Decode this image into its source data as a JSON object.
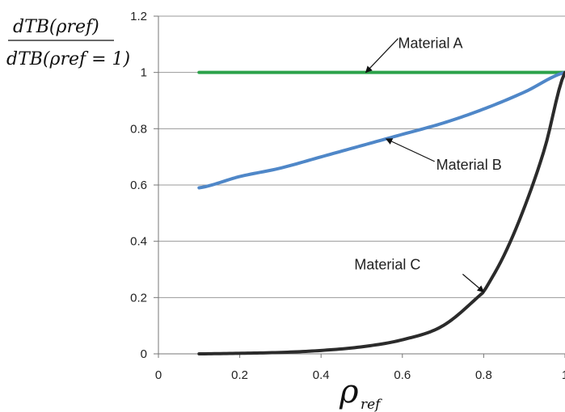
{
  "chart_data": {
    "type": "line",
    "xlabel": "ρref",
    "xlabel_main": "ρ",
    "xlabel_sub": "ref",
    "ylabel_numerator": "dTB(ρref)",
    "ylabel_denominator": "dTB(ρref = 1)",
    "xlim": [
      0,
      1
    ],
    "ylim": [
      0,
      1.2
    ],
    "x_ticks": [
      "0",
      "0.2",
      "0.4",
      "0.6",
      "0.8",
      "1"
    ],
    "y_ticks": [
      "0",
      "0.2",
      "0.4",
      "0.6",
      "0.8",
      "1",
      "1.2"
    ],
    "grid": "horizontal",
    "legend": "none",
    "series": [
      {
        "name": "Material A",
        "color": "#2ca24a",
        "x": [
          0.1,
          0.2,
          0.3,
          0.4,
          0.5,
          0.6,
          0.7,
          0.8,
          0.9,
          1.0
        ],
        "y": [
          1.0,
          1.0,
          1.0,
          1.0,
          1.0,
          1.0,
          1.0,
          1.0,
          1.0,
          1.0
        ]
      },
      {
        "name": "Material B",
        "color": "#4f87c8",
        "x": [
          0.1,
          0.2,
          0.3,
          0.4,
          0.5,
          0.6,
          0.7,
          0.8,
          0.9,
          1.0
        ],
        "y": [
          0.59,
          0.63,
          0.66,
          0.7,
          0.74,
          0.78,
          0.82,
          0.87,
          0.93,
          1.0
        ]
      },
      {
        "name": "Material C",
        "color": "#2b2b2b",
        "x": [
          0.1,
          0.2,
          0.3,
          0.4,
          0.5,
          0.6,
          0.7,
          0.8,
          0.85,
          0.9,
          0.95,
          1.0
        ],
        "y": [
          0.0,
          0.002,
          0.005,
          0.012,
          0.025,
          0.05,
          0.1,
          0.22,
          0.35,
          0.52,
          0.73,
          1.0
        ]
      }
    ],
    "annotations": [
      {
        "text": "Material A",
        "series": "Material A",
        "at_x": 0.51
      },
      {
        "text": "Material B",
        "series": "Material B",
        "at_x": 0.56
      },
      {
        "text": "Material C",
        "series": "Material C",
        "at_x": 0.8
      }
    ]
  }
}
